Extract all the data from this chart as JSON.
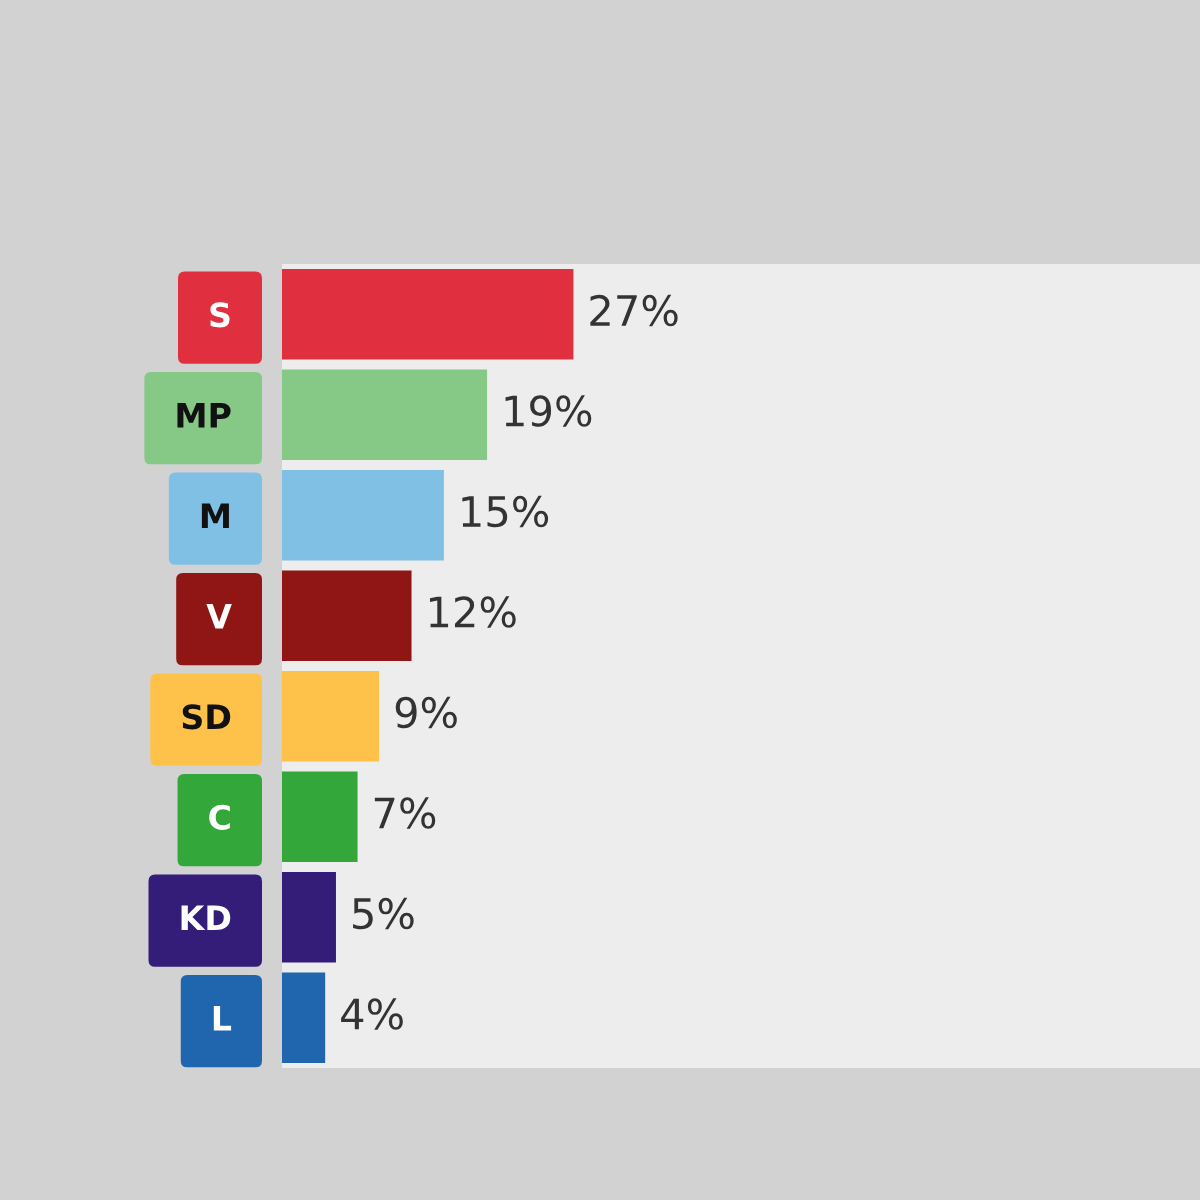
{
  "chart_data": {
    "type": "bar",
    "orientation": "horizontal",
    "categories": [
      "S",
      "MP",
      "M",
      "V",
      "SD",
      "C",
      "KD",
      "L"
    ],
    "values": [
      27,
      19,
      15,
      12,
      9,
      7,
      5,
      4
    ],
    "colors": [
      "#e0303f",
      "#86c986",
      "#80c0e4",
      "#901616",
      "#fec24b",
      "#33a73a",
      "#341d78",
      "#2066ae"
    ],
    "value_labels": [
      "27%",
      "19%",
      "15%",
      "12%",
      "9%",
      "7%",
      "5%",
      "4%"
    ]
  }
}
